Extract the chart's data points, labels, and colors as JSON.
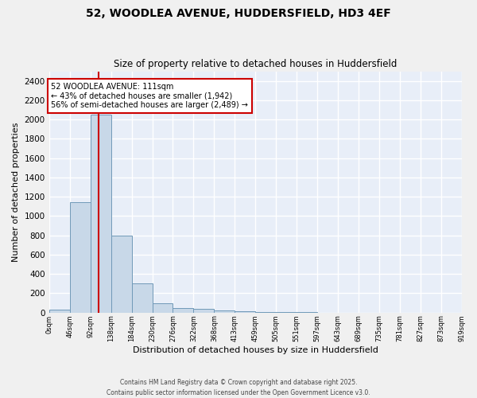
{
  "title": "52, WOODLEA AVENUE, HUDDERSFIELD, HD3 4EF",
  "subtitle": "Size of property relative to detached houses in Huddersfield",
  "xlabel": "Distribution of detached houses by size in Huddersfield",
  "ylabel": "Number of detached properties",
  "bin_edges": [
    0,
    46,
    92,
    138,
    184,
    230,
    276,
    322,
    368,
    413,
    459,
    505,
    551,
    597,
    643,
    689,
    735,
    781,
    827,
    873,
    919
  ],
  "bar_heights": [
    30,
    1140,
    2050,
    800,
    300,
    100,
    50,
    40,
    20,
    15,
    5,
    3,
    2,
    1,
    1,
    0,
    0,
    0,
    0,
    0
  ],
  "bar_color": "#c8d8e8",
  "bar_edge_color": "#7099b8",
  "property_size": 111,
  "vline_color": "#cc0000",
  "annotation_text": "52 WOODLEA AVENUE: 111sqm\n← 43% of detached houses are smaller (1,942)\n56% of semi-detached houses are larger (2,489) →",
  "annotation_box_color": "#ffffff",
  "annotation_box_edgecolor": "#cc0000",
  "ylim": [
    0,
    2500
  ],
  "yticks": [
    0,
    200,
    400,
    600,
    800,
    1000,
    1200,
    1400,
    1600,
    1800,
    2000,
    2200,
    2400
  ],
  "background_color": "#e8eef8",
  "fig_background_color": "#f0f0f0",
  "grid_color": "#ffffff",
  "footer_line1": "Contains HM Land Registry data © Crown copyright and database right 2025.",
  "footer_line2": "Contains public sector information licensed under the Open Government Licence v3.0.",
  "tick_labels": [
    "0sqm",
    "46sqm",
    "92sqm",
    "138sqm",
    "184sqm",
    "230sqm",
    "276sqm",
    "322sqm",
    "368sqm",
    "413sqm",
    "459sqm",
    "505sqm",
    "551sqm",
    "597sqm",
    "643sqm",
    "689sqm",
    "735sqm",
    "781sqm",
    "827sqm",
    "873sqm",
    "919sqm"
  ]
}
